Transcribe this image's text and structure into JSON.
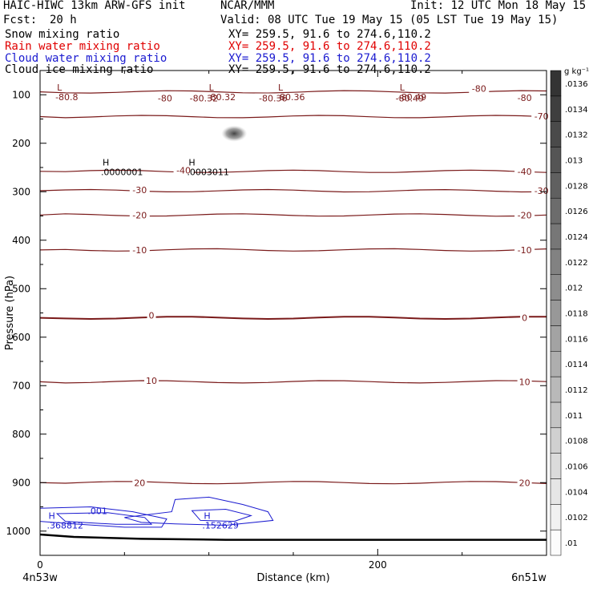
{
  "header": {
    "model": "HAIC-HIWC 13km ARW-GFS init",
    "org": "NCAR/MMM",
    "init": "Init: 12 UTC Mon 18 May 15",
    "fcst_label": "Fcst:",
    "fcst_value": "20 h",
    "valid": "Valid: 08 UTC Tue 19 May 15 (05 LST Tue 19 May 15)"
  },
  "fields": [
    {
      "name": "Snow mixing ratio",
      "xy": "XY= 259.5, 91.6 to 274.6,110.2",
      "color": "#000000"
    },
    {
      "name": "Rain water mixing ratio",
      "xy": "XY= 259.5, 91.6 to 274.6,110.2",
      "color": "#e00000"
    },
    {
      "name": "Cloud water mixing ratio",
      "xy": "XY= 259.5, 91.6 to 274.6,110.2",
      "color": "#1a1ad0"
    },
    {
      "name": "Cloud ice mixing ratio",
      "xy": "XY= 259.5, 91.6 to 274.6,110.2",
      "color": "#000000"
    }
  ],
  "colors": {
    "temperature": "#7a1a1a",
    "cloud_water": "#1a1ad0",
    "ground": "#000000"
  },
  "chart_data": {
    "type": "contour-cross-section",
    "xlabel": "Distance (km)",
    "ylabel": "Pressure (hPa)",
    "xlim": [
      0,
      300
    ],
    "ylim": [
      1050,
      50
    ],
    "x_ticks": [
      0,
      200
    ],
    "y_ticks": [
      100,
      200,
      300,
      400,
      500,
      600,
      700,
      800,
      900,
      1000
    ],
    "x_endpoints": {
      "left": "4n53w",
      "right": "6n51w"
    },
    "colorbar": {
      "unit": "g kg⁻¹",
      "levels": [
        ".01",
        ".0102",
        ".0104",
        ".0106",
        ".0108",
        ".011",
        ".0112",
        ".0114",
        ".0116",
        ".0118",
        ".012",
        ".0122",
        ".0124",
        ".0126",
        ".0128",
        ".013",
        ".0132",
        ".0134",
        ".0136"
      ]
    },
    "temperature_contours": [
      {
        "label": "-80",
        "p": 94
      },
      {
        "label": "-70",
        "p": 145
      },
      {
        "label": "-40",
        "p": 258
      },
      {
        "label": "-30",
        "p": 298
      },
      {
        "label": "-20",
        "p": 348
      },
      {
        "label": "-10",
        "p": 420
      },
      {
        "label": "0",
        "p": 560
      },
      {
        "label": "10",
        "p": 692
      },
      {
        "label": "20",
        "p": 900
      }
    ],
    "temperature_labels": [
      {
        "text": "-80",
        "x": 74,
        "p": 107
      },
      {
        "text": "-80.32",
        "x": 97,
        "p": 107
      },
      {
        "text": "-80.36",
        "x": 138,
        "p": 107
      },
      {
        "text": "-80.49",
        "x": 219,
        "p": 107
      },
      {
        "text": "-80",
        "x": 260,
        "p": 87
      },
      {
        "text": "-80",
        "x": 287,
        "p": 106
      },
      {
        "text": "-70",
        "x": 297,
        "p": 144
      },
      {
        "text": "-40",
        "x": 85,
        "p": 256
      },
      {
        "text": "-40",
        "x": 287,
        "p": 258
      },
      {
        "text": "-30",
        "x": 59,
        "p": 296
      },
      {
        "text": "-30",
        "x": 297,
        "p": 298
      },
      {
        "text": "-20",
        "x": 59,
        "p": 348
      },
      {
        "text": "-20",
        "x": 287,
        "p": 348
      },
      {
        "text": "-10",
        "x": 59,
        "p": 420
      },
      {
        "text": "-10",
        "x": 287,
        "p": 420
      },
      {
        "text": "0",
        "x": 66,
        "p": 555
      },
      {
        "text": "0",
        "x": 287,
        "p": 560
      },
      {
        "text": "10",
        "x": 66,
        "p": 690
      },
      {
        "text": "10",
        "x": 287,
        "p": 692
      },
      {
        "text": "20",
        "x": 59,
        "p": 900
      },
      {
        "text": "20",
        "x": 287,
        "p": 900
      }
    ],
    "extrema": [
      {
        "kind": "L",
        "x": 10,
        "p": 91,
        "value": "-80.8"
      },
      {
        "kind": "L",
        "x": 100,
        "p": 91,
        "value": "-80.32"
      },
      {
        "kind": "L",
        "x": 141,
        "p": 91,
        "value": "-80.36"
      },
      {
        "kind": "L",
        "x": 213,
        "p": 91,
        "value": "-80.49"
      },
      {
        "kind": "H",
        "x": 37,
        "p": 246,
        "value": ".0000001"
      },
      {
        "kind": "H",
        "x": 88,
        "p": 246,
        "value": ".0003011"
      },
      {
        "kind": "H",
        "x": 5,
        "p": 975,
        "value": ".368812"
      },
      {
        "kind": "H",
        "x": 97,
        "p": 975,
        "value": ".152629"
      }
    ],
    "cloud_water_labels": [
      {
        "text": ".001",
        "x": 34,
        "p": 958
      }
    ],
    "cloud_ice_maximum": {
      "x": 115,
      "p": 180
    }
  }
}
